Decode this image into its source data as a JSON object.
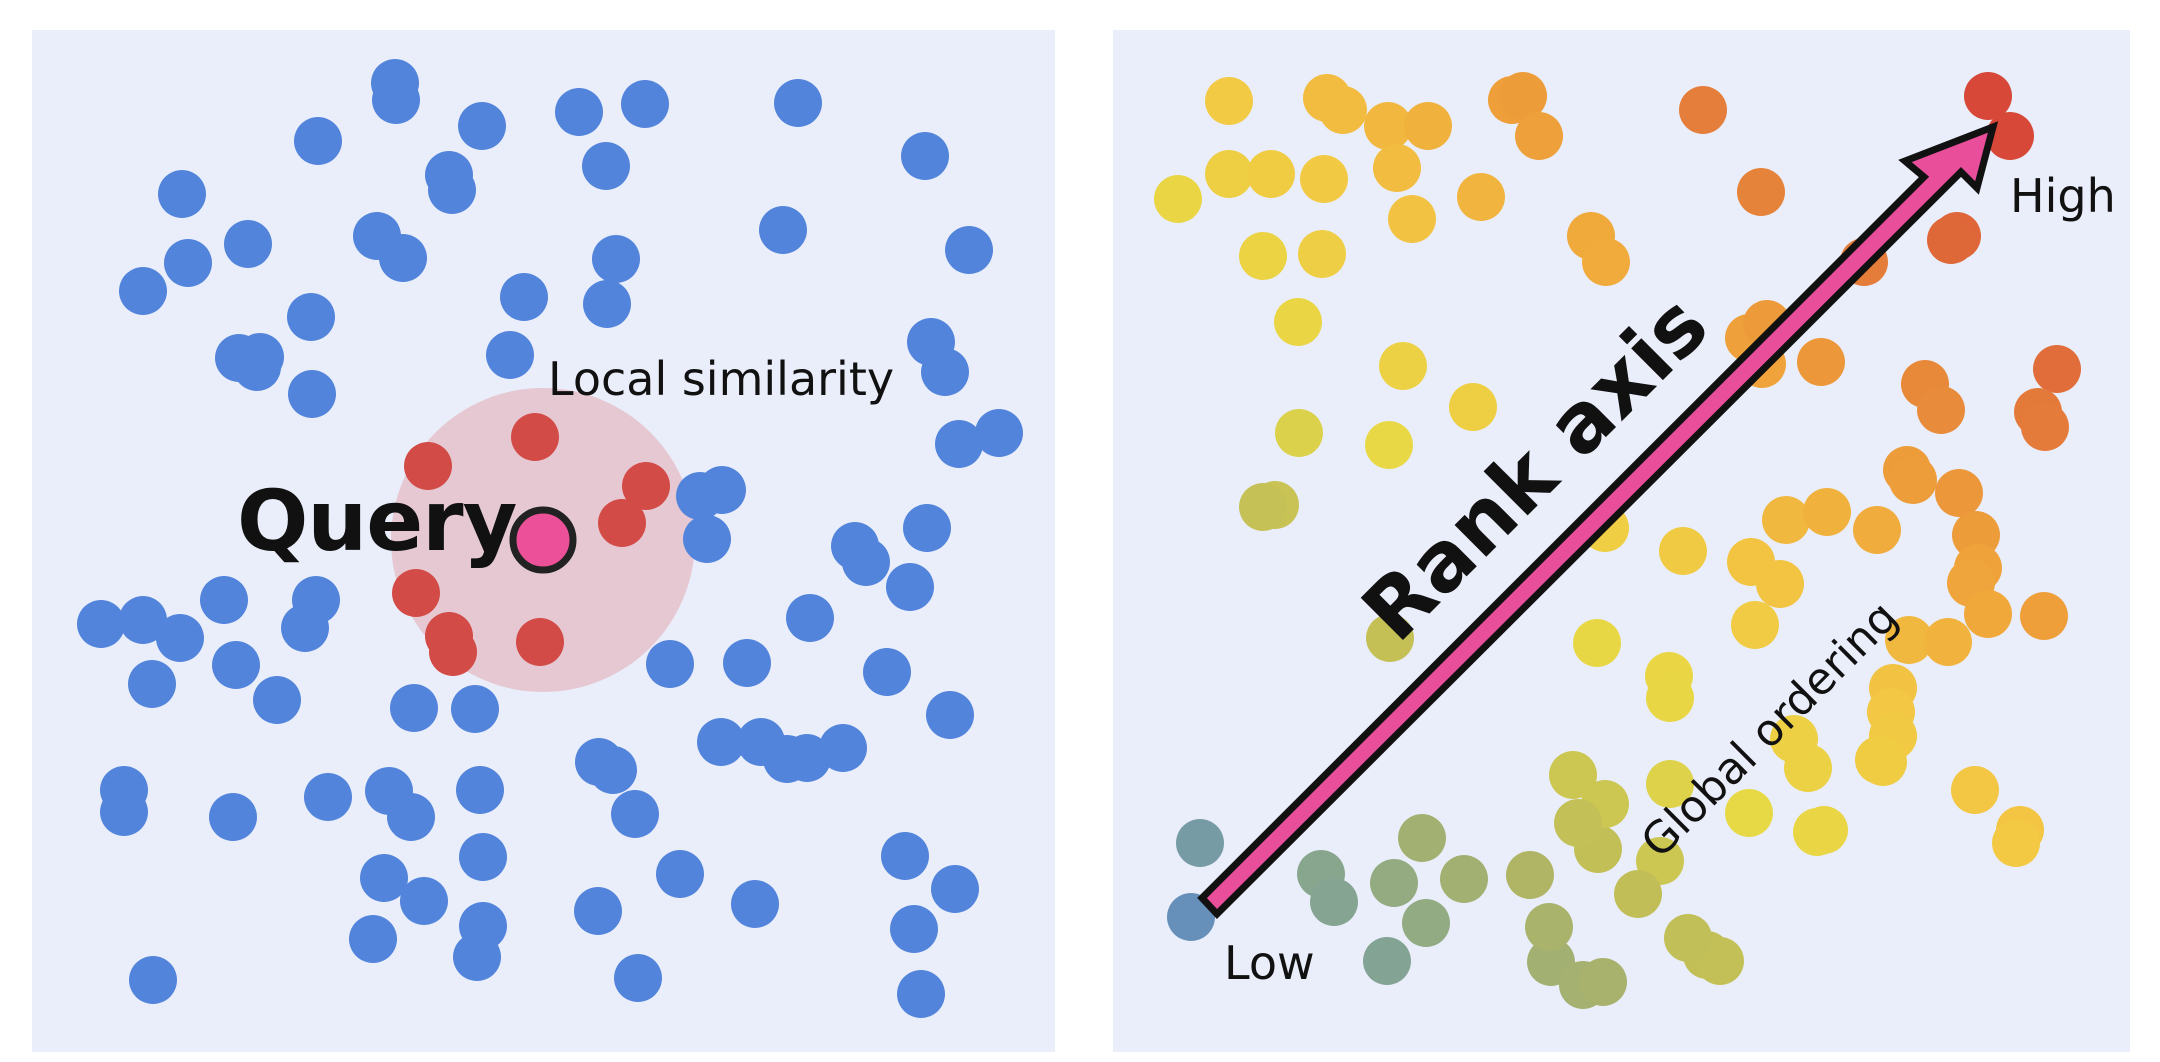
{
  "left_panel": {
    "query_label": "Query",
    "region_label": "Local similarity",
    "colors": {
      "background": "#EAEEFA",
      "point": "#5284DC",
      "neighbor": "#D24B46",
      "query_fill": "#EC5098",
      "region": "#E6C8D2"
    }
  },
  "right_panel": {
    "axis_label": "Rank axis",
    "trend_label": "Global ordering",
    "low_label": "Low",
    "high_label": "High",
    "colors": {
      "background": "#EAEEFA",
      "arrow": "#E94E9B",
      "gradient": [
        "#5D8AC6",
        "#8BA88A",
        "#B8B85C",
        "#E7D945",
        "#F3C843",
        "#EFA33A",
        "#E3783A",
        "#D84838"
      ]
    }
  }
}
